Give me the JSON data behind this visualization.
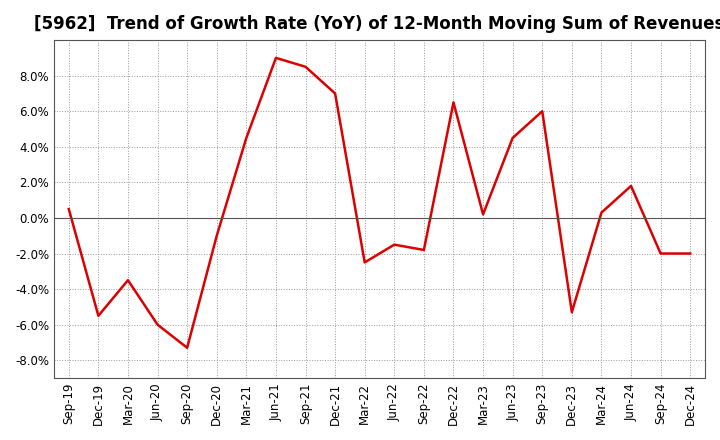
{
  "title": "[5962]  Trend of Growth Rate (YoY) of 12-Month Moving Sum of Revenues",
  "x_labels": [
    "Sep-19",
    "Dec-19",
    "Mar-20",
    "Jun-20",
    "Sep-20",
    "Dec-20",
    "Mar-21",
    "Jun-21",
    "Sep-21",
    "Dec-21",
    "Mar-22",
    "Jun-22",
    "Sep-22",
    "Dec-22",
    "Mar-23",
    "Jun-23",
    "Sep-23",
    "Dec-23",
    "Mar-24",
    "Jun-24",
    "Sep-24",
    "Dec-24"
  ],
  "y_values": [
    0.005,
    -0.055,
    -0.035,
    -0.06,
    -0.073,
    -0.01,
    0.045,
    0.09,
    0.085,
    0.07,
    -0.025,
    -0.015,
    -0.018,
    0.065,
    0.002,
    0.045,
    0.06,
    -0.053,
    0.003,
    0.018,
    -0.02,
    -0.02
  ],
  "line_color": "#dd0000",
  "line_width": 1.8,
  "ylim": [
    -0.09,
    0.1
  ],
  "yticks": [
    -0.08,
    -0.06,
    -0.04,
    -0.02,
    0.0,
    0.02,
    0.04,
    0.06,
    0.08
  ],
  "background_color": "#ffffff",
  "plot_bg_color": "#ffffff",
  "grid_color": "#999999",
  "title_fontsize": 12,
  "tick_fontsize": 8.5,
  "zero_line_color": "#555555",
  "spine_color": "#555555"
}
